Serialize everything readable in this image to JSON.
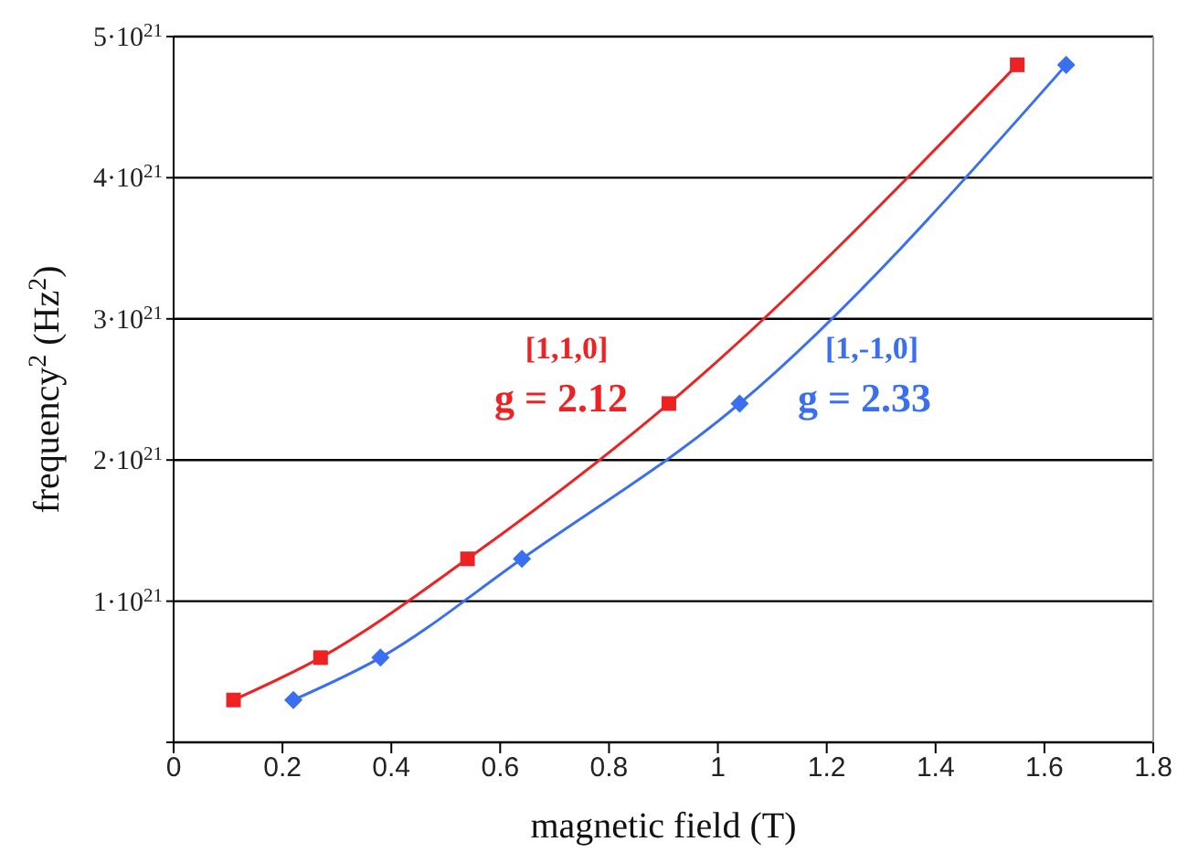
{
  "chart_data": {
    "type": "line",
    "xlabel": "magnetic field (T)",
    "ylabel": "frequency$^{2}$ (Hz$^{2}$)",
    "xlim": [
      0,
      1.8
    ],
    "xticks": [
      0,
      0.2,
      0.4,
      0.6,
      0.8,
      1,
      1.2,
      1.4,
      1.6,
      1.8
    ],
    "ylim": [
      0,
      5e+21
    ],
    "yticks": [
      {
        "value": 0,
        "label": null
      },
      {
        "value": 1e+21,
        "label": "1·10$^{21}$"
      },
      {
        "value": 2e+21,
        "label": "2·10$^{21}$"
      },
      {
        "value": 3e+21,
        "label": "3·10$^{21}$"
      },
      {
        "value": 4e+21,
        "label": "4·10$^{21}$"
      },
      {
        "value": 5e+21,
        "label": "5·10$^{21}$"
      }
    ],
    "grid": "y",
    "legend": false,
    "series": [
      {
        "name": "[1,1,0]",
        "color": "#ee2222",
        "marker": "square",
        "x": [
          0.11,
          0.27,
          0.54,
          0.91,
          1.55
        ],
        "values": [
          3e+20,
          6e+20,
          1.3e+21,
          2.4e+21,
          4.8e+21
        ]
      },
      {
        "name": "[1,-1,0]",
        "color": "#3a6ff0",
        "marker": "diamond",
        "x": [
          0.22,
          0.38,
          0.64,
          1.04,
          1.64
        ],
        "values": [
          3e+20,
          6e+20,
          1.3e+21,
          2.4e+21,
          4.8e+21
        ]
      }
    ],
    "annotations": [
      "g = 2.12",
      "g = 2.33"
    ]
  }
}
